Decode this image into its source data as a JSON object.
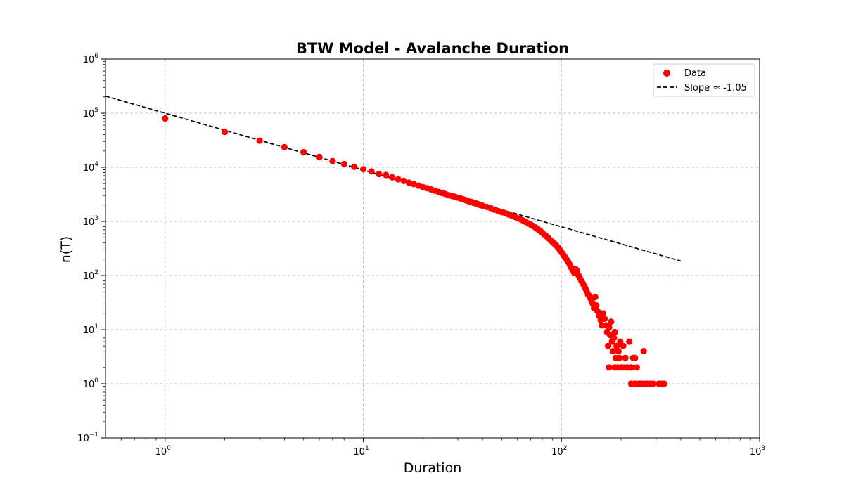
{
  "chart_data": {
    "type": "scatter",
    "title": "BTW Model - Avalanche Duration",
    "xlabel": "Duration",
    "ylabel": "n(T)",
    "xscale": "log",
    "yscale": "log",
    "xlim": [
      0.5,
      1000
    ],
    "ylim": [
      0.1,
      1000000
    ],
    "grid": true,
    "legend_position": "top-right",
    "x_ticks": [
      {
        "value": 1,
        "base": "10",
        "exp": "0"
      },
      {
        "value": 10,
        "base": "10",
        "exp": "1"
      },
      {
        "value": 100,
        "base": "10",
        "exp": "2"
      },
      {
        "value": 1000,
        "base": "10",
        "exp": "3"
      }
    ],
    "y_ticks": [
      {
        "value": 0.1,
        "base": "10",
        "exp": "−1"
      },
      {
        "value": 1,
        "base": "10",
        "exp": "0"
      },
      {
        "value": 10,
        "base": "10",
        "exp": "1"
      },
      {
        "value": 100,
        "base": "10",
        "exp": "2"
      },
      {
        "value": 1000,
        "base": "10",
        "exp": "3"
      },
      {
        "value": 10000,
        "base": "10",
        "exp": "4"
      },
      {
        "value": 100000,
        "base": "10",
        "exp": "5"
      },
      {
        "value": 1000000,
        "base": "10",
        "exp": "6"
      }
    ],
    "series": [
      {
        "name": "Data",
        "kind": "scatter",
        "color": "#ff0000",
        "points": [
          [
            1,
            80000
          ],
          [
            2,
            45000
          ],
          [
            3,
            31000
          ],
          [
            4,
            23500
          ],
          [
            5,
            19000
          ],
          [
            6,
            15500
          ],
          [
            7,
            13000
          ],
          [
            8,
            11500
          ],
          [
            9,
            10200
          ],
          [
            10,
            9200
          ],
          [
            11,
            8400
          ],
          [
            12,
            7500
          ],
          [
            13,
            7200
          ],
          [
            14,
            6500
          ],
          [
            15,
            6000
          ],
          [
            16,
            5600
          ],
          [
            17,
            5200
          ],
          [
            18,
            4900
          ],
          [
            19,
            4600
          ],
          [
            20,
            4300
          ],
          [
            21,
            4100
          ],
          [
            22,
            3900
          ],
          [
            23,
            3700
          ],
          [
            24,
            3500
          ],
          [
            25,
            3350
          ],
          [
            26,
            3200
          ],
          [
            27,
            3050
          ],
          [
            28,
            2950
          ],
          [
            29,
            2850
          ],
          [
            30,
            2750
          ],
          [
            31,
            2650
          ],
          [
            32,
            2550
          ],
          [
            33,
            2450
          ],
          [
            34,
            2350
          ],
          [
            35,
            2300
          ],
          [
            36,
            2200
          ],
          [
            37,
            2150
          ],
          [
            38,
            2080
          ],
          [
            39,
            2000
          ],
          [
            40,
            1950
          ],
          [
            42,
            1850
          ],
          [
            44,
            1750
          ],
          [
            46,
            1650
          ],
          [
            48,
            1550
          ],
          [
            50,
            1480
          ],
          [
            52,
            1420
          ],
          [
            54,
            1350
          ],
          [
            56,
            1280
          ],
          [
            58,
            1220
          ],
          [
            60,
            1150
          ],
          [
            62,
            1100
          ],
          [
            64,
            1040
          ],
          [
            66,
            980
          ],
          [
            68,
            920
          ],
          [
            70,
            870
          ],
          [
            72,
            820
          ],
          [
            74,
            770
          ],
          [
            76,
            720
          ],
          [
            78,
            670
          ],
          [
            80,
            620
          ],
          [
            82,
            570
          ],
          [
            84,
            530
          ],
          [
            86,
            490
          ],
          [
            88,
            450
          ],
          [
            90,
            420
          ],
          [
            92,
            390
          ],
          [
            94,
            360
          ],
          [
            96,
            330
          ],
          [
            98,
            300
          ],
          [
            100,
            270
          ],
          [
            102,
            245
          ],
          [
            104,
            220
          ],
          [
            106,
            200
          ],
          [
            108,
            180
          ],
          [
            110,
            160
          ],
          [
            112,
            140
          ],
          [
            114,
            125
          ],
          [
            116,
            112
          ],
          [
            118,
            130
          ],
          [
            120,
            120
          ],
          [
            122,
            100
          ],
          [
            124,
            90
          ],
          [
            126,
            80
          ],
          [
            128,
            72
          ],
          [
            130,
            65
          ],
          [
            132,
            58
          ],
          [
            134,
            52
          ],
          [
            136,
            45
          ],
          [
            138,
            42
          ],
          [
            140,
            38
          ],
          [
            142,
            34
          ],
          [
            144,
            30
          ],
          [
            146,
            25
          ],
          [
            148,
            40
          ],
          [
            150,
            28
          ],
          [
            152,
            22
          ],
          [
            155,
            18
          ],
          [
            158,
            15
          ],
          [
            160,
            12
          ],
          [
            162,
            20
          ],
          [
            165,
            16
          ],
          [
            168,
            12
          ],
          [
            170,
            9
          ],
          [
            172,
            5
          ],
          [
            174,
            11
          ],
          [
            176,
            8
          ],
          [
            178,
            14
          ],
          [
            180,
            6
          ],
          [
            182,
            4
          ],
          [
            184,
            7
          ],
          [
            186,
            9
          ],
          [
            188,
            3
          ],
          [
            190,
            5
          ],
          [
            192,
            2
          ],
          [
            194,
            4
          ],
          [
            196,
            3
          ],
          [
            198,
            6
          ],
          [
            200,
            2
          ],
          [
            205,
            5
          ],
          [
            210,
            3
          ],
          [
            215,
            2
          ],
          [
            220,
            6
          ],
          [
            225,
            1
          ],
          [
            230,
            3
          ],
          [
            235,
            1
          ],
          [
            240,
            2
          ],
          [
            245,
            1
          ],
          [
            250,
            1
          ],
          [
            255,
            1
          ],
          [
            260,
            4
          ],
          [
            265,
            1
          ],
          [
            270,
            1
          ],
          [
            280,
            1
          ],
          [
            290,
            1
          ],
          [
            310,
            1
          ],
          [
            320,
            1
          ],
          [
            330,
            1
          ],
          [
            174,
            2
          ],
          [
            186,
            2
          ],
          [
            205,
            2
          ],
          [
            225,
            2
          ],
          [
            235,
            3
          ]
        ]
      },
      {
        "name": "Slope ≈ -1.05",
        "kind": "line",
        "style": "dashed",
        "color": "#000000",
        "slope": -1.05,
        "x_range": [
          0.5,
          400
        ],
        "intercept_at_x1": 100000
      }
    ]
  }
}
